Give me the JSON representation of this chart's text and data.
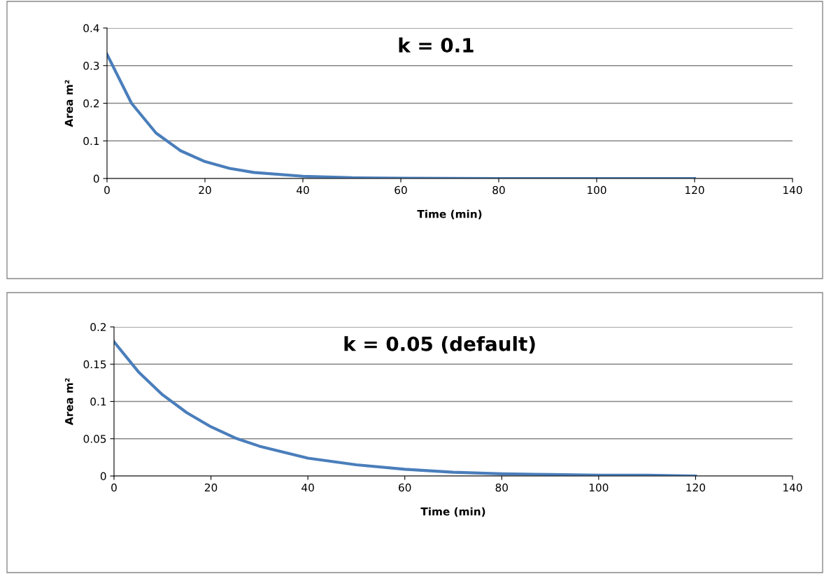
{
  "chart_data": [
    {
      "type": "line",
      "title": "k = 0.1",
      "xlabel": "Time (min)",
      "ylabel": "Area m²",
      "x": [
        0,
        5,
        10,
        15,
        20,
        25,
        30,
        40,
        50,
        60,
        80,
        100,
        120
      ],
      "series": [
        {
          "color": "#4a7ebb",
          "values": [
            0.33,
            0.2,
            0.121,
            0.074,
            0.045,
            0.027,
            0.016,
            0.006,
            0.002,
            0.001,
            0,
            0,
            0
          ]
        }
      ],
      "xlim": [
        0,
        140
      ],
      "xticks": [
        0,
        20,
        40,
        60,
        80,
        100,
        120,
        140
      ],
      "ylim": [
        0,
        0.4
      ],
      "yticks": [
        0,
        0.1,
        0.2,
        0.3,
        0.4
      ],
      "grid": "y",
      "legend": false,
      "marker": "none",
      "line_style": "solid"
    },
    {
      "type": "line",
      "title": "k = 0.05 (default)",
      "xlabel": "Time (min)",
      "ylabel": "Area m²",
      "x": [
        0,
        5,
        10,
        15,
        20,
        25,
        30,
        40,
        50,
        60,
        70,
        80,
        90,
        100,
        110,
        120
      ],
      "series": [
        {
          "color": "#4a7ebb",
          "values": [
            0.18,
            0.14,
            0.109,
            0.085,
            0.066,
            0.051,
            0.04,
            0.024,
            0.015,
            0.009,
            0.005,
            0.003,
            0.002,
            0.001,
            0.001,
            0
          ]
        }
      ],
      "xlim": [
        0,
        140
      ],
      "xticks": [
        0,
        20,
        40,
        60,
        80,
        100,
        120,
        140
      ],
      "ylim": [
        0,
        0.2
      ],
      "yticks": [
        0,
        0.05,
        0.1,
        0.15,
        0.2
      ],
      "grid": "y",
      "legend": false,
      "marker": "none",
      "line_style": "solid"
    }
  ]
}
